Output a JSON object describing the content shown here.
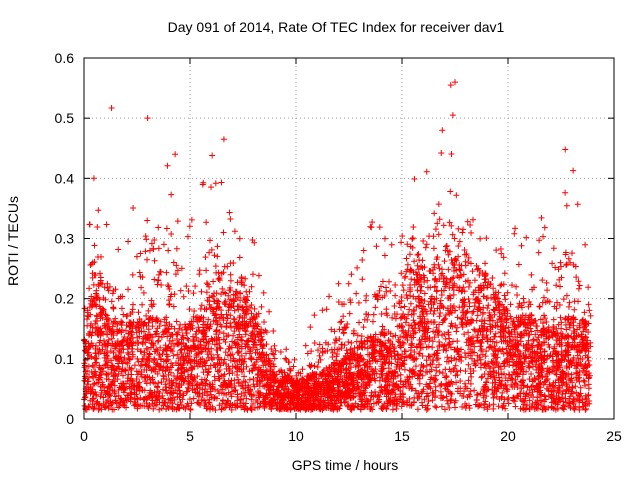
{
  "chart_data": {
    "type": "scatter",
    "title": "Day 091 of 2014, Rate Of TEC Index for receiver dav1",
    "xlabel": "GPS time / hours",
    "ylabel": "ROTI / TECUs",
    "xlim": [
      0,
      25
    ],
    "ylim": [
      0,
      0.6
    ],
    "xticks": [
      0,
      5,
      10,
      15,
      20,
      25
    ],
    "yticks": [
      0,
      0.1,
      0.2,
      0.3,
      0.4,
      0.5,
      0.6
    ],
    "xtick_labels": [
      "0",
      "5",
      "10",
      "15",
      "20",
      "25"
    ],
    "ytick_labels": [
      "0",
      "0.1",
      "0.2",
      "0.3",
      "0.4",
      "0.5",
      "0.6"
    ],
    "grid": true,
    "marker": "+",
    "color": "#ff0000",
    "data_range_hours": [
      0,
      23.9
    ],
    "envelope": {
      "hours": [
        0,
        0.5,
        1,
        2,
        3,
        4,
        5,
        6,
        7,
        8,
        8.6,
        9,
        10,
        11,
        12,
        13,
        14,
        14.8,
        15,
        16,
        17,
        18,
        19,
        20,
        21,
        22,
        23,
        23.9
      ],
      "typical": [
        0.09,
        0.13,
        0.1,
        0.09,
        0.1,
        0.09,
        0.09,
        0.12,
        0.13,
        0.11,
        0.06,
        0.04,
        0.03,
        0.04,
        0.05,
        0.07,
        0.09,
        0.06,
        0.15,
        0.16,
        0.15,
        0.17,
        0.14,
        0.1,
        0.1,
        0.09,
        0.1,
        0.09
      ],
      "peak": [
        0.3,
        0.42,
        0.33,
        0.3,
        0.5,
        0.44,
        0.33,
        0.46,
        0.34,
        0.3,
        0.22,
        0.18,
        0.1,
        0.2,
        0.24,
        0.28,
        0.38,
        0.36,
        0.46,
        0.42,
        0.5,
        0.4,
        0.3,
        0.33,
        0.3,
        0.38,
        0.44,
        0.25
      ]
    },
    "notable_points": [
      {
        "x": 1.3,
        "y": 0.517
      },
      {
        "x": 3.0,
        "y": 0.5
      },
      {
        "x": 4.3,
        "y": 0.44
      },
      {
        "x": 6.6,
        "y": 0.465
      },
      {
        "x": 16.9,
        "y": 0.48
      },
      {
        "x": 17.3,
        "y": 0.555
      },
      {
        "x": 17.5,
        "y": 0.56
      },
      {
        "x": 17.4,
        "y": 0.505
      },
      {
        "x": 22.7,
        "y": 0.448
      }
    ]
  }
}
